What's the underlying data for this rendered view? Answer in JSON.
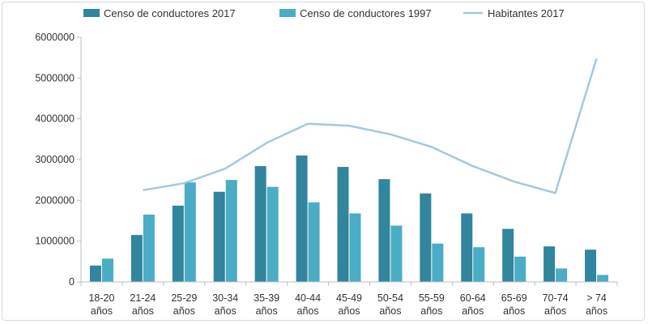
{
  "chart_data": {
    "type": "bar",
    "title": "",
    "xlabel": "",
    "ylabel": "",
    "ylim": [
      0,
      6000000
    ],
    "yticks": [
      "0",
      "1000000",
      "2000000",
      "3000000",
      "4000000",
      "5000000",
      "6000000"
    ],
    "grid": false,
    "legend_position": "top",
    "categories": [
      [
        "18-20",
        "años"
      ],
      [
        "21-24",
        "años"
      ],
      [
        "25-29",
        "años"
      ],
      [
        "30-34",
        "años"
      ],
      [
        "35-39",
        "años"
      ],
      [
        "40-44",
        "años"
      ],
      [
        "45-49",
        "años"
      ],
      [
        "50-54",
        "años"
      ],
      [
        "55-59",
        "años"
      ],
      [
        "60-64",
        "años"
      ],
      [
        "65-69",
        "años"
      ],
      [
        "70-74",
        "años"
      ],
      [
        "> 74",
        "años"
      ]
    ],
    "series": [
      {
        "name": "Censo de conductores 2017",
        "kind": "bar",
        "color": "#31859c",
        "values": [
          400000,
          1150000,
          1870000,
          2210000,
          2840000,
          3100000,
          2820000,
          2520000,
          2170000,
          1680000,
          1300000,
          870000,
          790000
        ]
      },
      {
        "name": "Censo de conductores 1997",
        "kind": "bar",
        "color": "#4bacc6",
        "values": [
          570000,
          1650000,
          2440000,
          2500000,
          2330000,
          1950000,
          1680000,
          1380000,
          940000,
          850000,
          620000,
          330000,
          170000
        ]
      },
      {
        "name": "Habitantes 2017",
        "kind": "line",
        "color": "#a5c8dc",
        "values": [
          null,
          2250000,
          2420000,
          2780000,
          3410000,
          3880000,
          3830000,
          3620000,
          3310000,
          2840000,
          2460000,
          2180000,
          5480000
        ]
      }
    ]
  }
}
